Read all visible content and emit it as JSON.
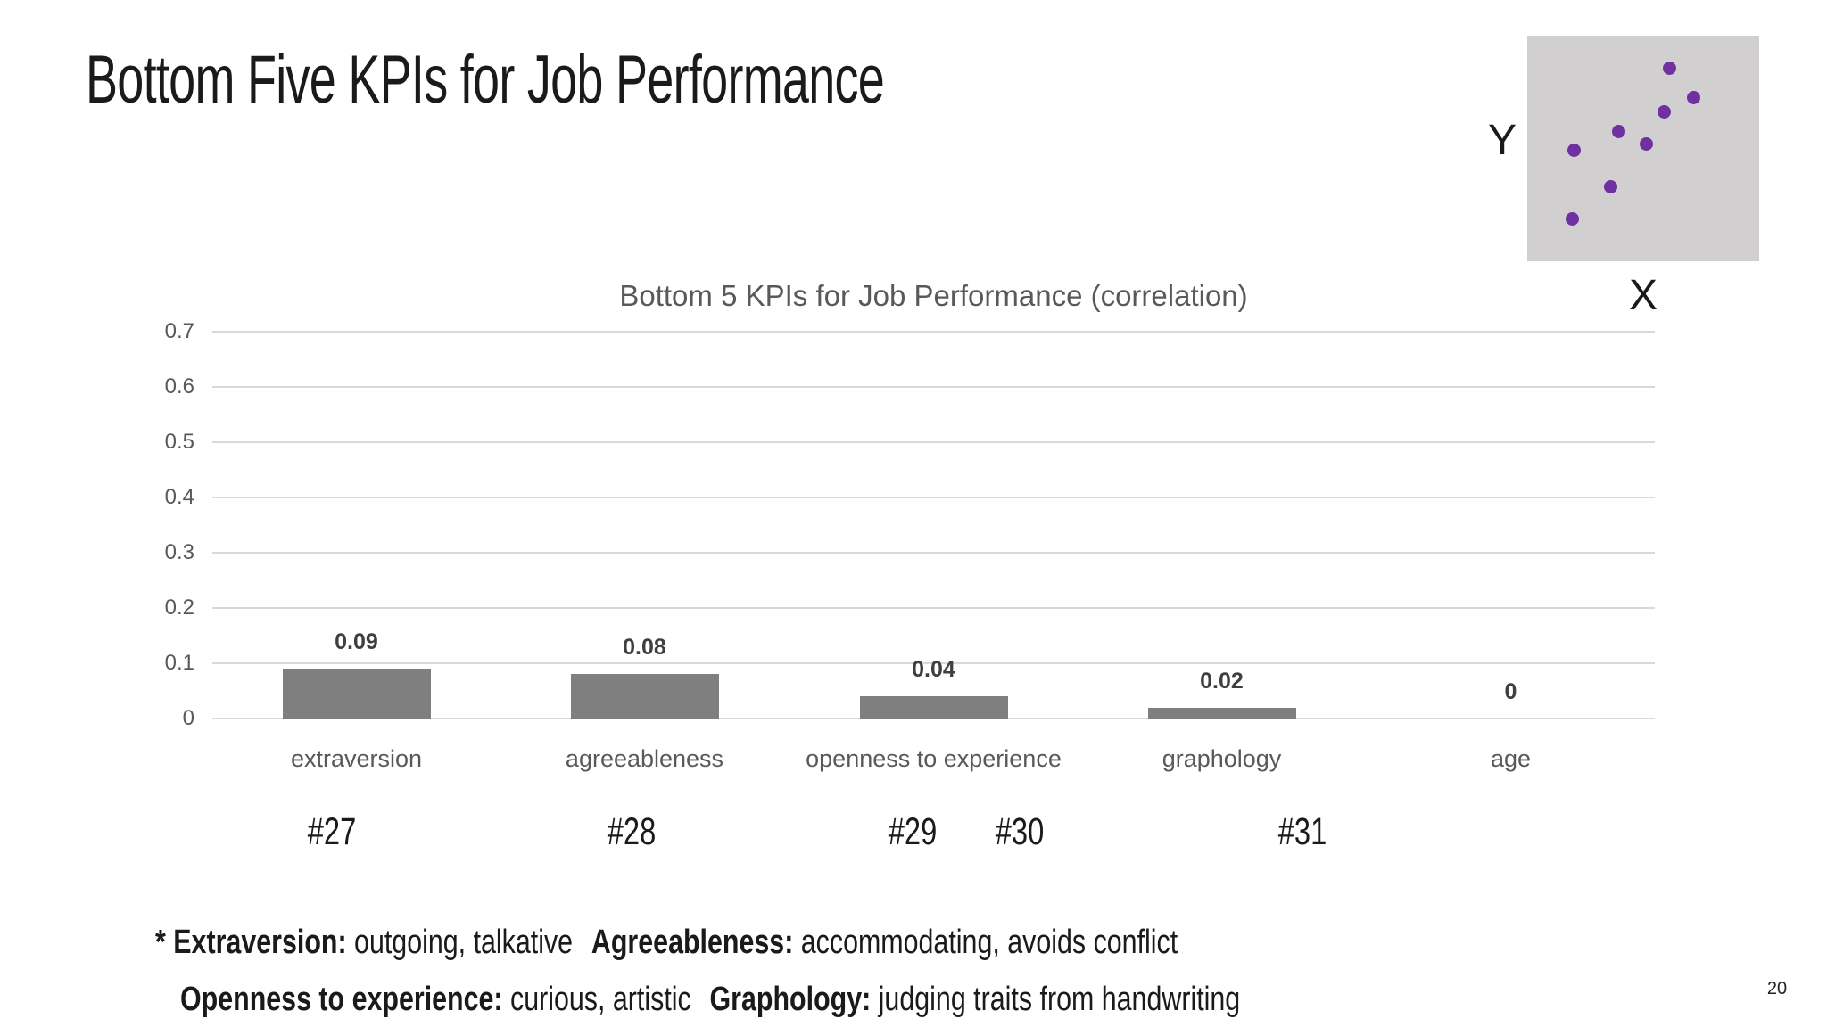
{
  "slide": {
    "title": "Bottom Five KPIs for Job Performance",
    "page_number": "20"
  },
  "scatter_inset": {
    "y_label": "Y",
    "x_label": "X",
    "background": "#d1cfd0",
    "dot_color": "#7030a0",
    "points_pct": [
      {
        "x": 61.4,
        "y": 14.5
      },
      {
        "x": 71.7,
        "y": 27.4
      },
      {
        "x": 59.0,
        "y": 33.6
      },
      {
        "x": 39.3,
        "y": 42.6
      },
      {
        "x": 51.5,
        "y": 48.1
      },
      {
        "x": 20.3,
        "y": 50.7
      },
      {
        "x": 36.0,
        "y": 66.8
      },
      {
        "x": 19.5,
        "y": 81.3
      }
    ]
  },
  "chart_data": {
    "type": "bar",
    "title": "Bottom 5 KPIs for Job Performance (correlation)",
    "categories": [
      "extraversion",
      "agreeableness",
      "openness to experience",
      "graphology",
      "age"
    ],
    "values": [
      0.09,
      0.08,
      0.04,
      0.02,
      0
    ],
    "value_labels": [
      "0.09",
      "0.08",
      "0.04",
      "0.02",
      "0"
    ],
    "xlabel": "",
    "ylabel": "",
    "ylim": [
      0,
      0.7
    ],
    "yticks": [
      0,
      0.1,
      0.2,
      0.3,
      0.4,
      0.5,
      0.6,
      0.7
    ],
    "ytick_labels": [
      "0",
      "0.1",
      "0.2",
      "0.3",
      "0.4",
      "0.5",
      "0.6",
      "0.7"
    ],
    "grid": true,
    "legend": false,
    "bar_color": "#7f7f7f",
    "value_label_color": "#3f3f3f",
    "axis_text_color": "#595959",
    "gridline_color": "#d9d9d9"
  },
  "annotations": {
    "kpi_numbers": [
      "#27",
      "#28",
      "#29",
      "#30",
      "#31"
    ]
  },
  "footnotes": {
    "line1": [
      {
        "text": "* Extraversion:",
        "bold": true
      },
      {
        "text": " outgoing, talkative",
        "bold": false
      },
      {
        "text": "Agreeableness:",
        "bold": true
      },
      {
        "text": " accommodating, avoids conflict",
        "bold": false
      }
    ],
    "line2": [
      {
        "text": "Openness to experience:",
        "bold": true
      },
      {
        "text": " curious, artistic",
        "bold": false
      },
      {
        "text": "Graphology:",
        "bold": true
      },
      {
        "text": " judging traits from handwriting",
        "bold": false
      }
    ]
  }
}
